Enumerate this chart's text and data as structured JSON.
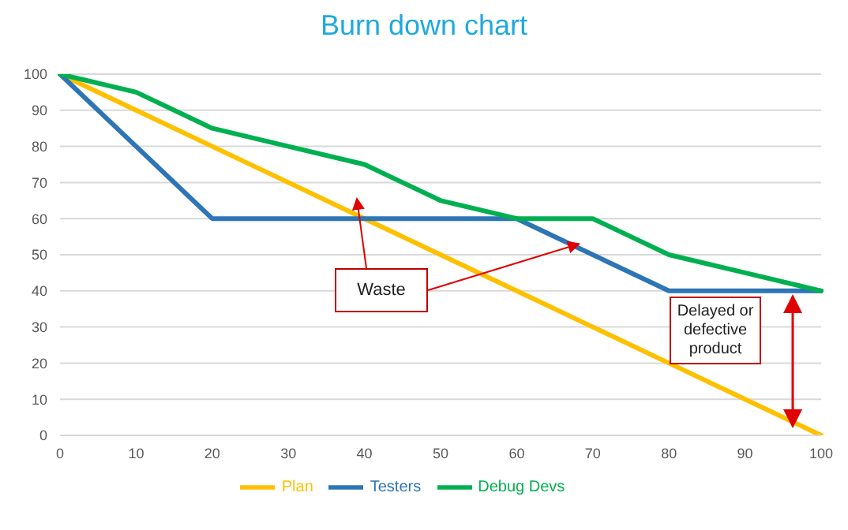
{
  "chart_data": {
    "type": "line",
    "title": "Burn down chart",
    "categories": [
      "0",
      "10",
      "20",
      "30",
      "40",
      "50",
      "60",
      "70",
      "80",
      "90",
      "100"
    ],
    "series": [
      {
        "name": "Plan",
        "color": "#ffc000",
        "values": [
          100,
          90,
          80,
          70,
          60,
          50,
          40,
          30,
          20,
          10,
          0
        ]
      },
      {
        "name": "Testers",
        "color": "#2e75b6",
        "values": [
          100,
          80,
          60,
          60,
          60,
          60,
          60,
          50,
          40,
          40,
          40
        ]
      },
      {
        "name": "Debug Devs",
        "color": "#00b050",
        "values": [
          100,
          95,
          85,
          80,
          75,
          65,
          60,
          60,
          50,
          45,
          40
        ]
      }
    ],
    "ylim": [
      0,
      100
    ],
    "yticks": [
      0,
      10,
      20,
      30,
      40,
      50,
      60,
      70,
      80,
      90,
      100
    ],
    "grid": "y",
    "legend": "bottom",
    "marker": "none",
    "line_style": "solid",
    "annotations": [
      {
        "text": "Waste",
        "x": "70",
        "y": 53
      },
      "Delayed or defective product"
    ]
  }
}
